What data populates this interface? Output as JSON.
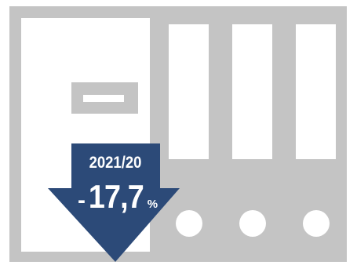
{
  "badge": {
    "period": "2021/20",
    "sign": "-",
    "value": "17,7",
    "unit": "%"
  },
  "colors": {
    "frame": "#c4c4c4",
    "panel": "#ffffff",
    "arrow": "#2c4a78",
    "text": "#ffffff"
  },
  "icons": {
    "device": "server-cabinet-icon",
    "trend": "down-arrow-icon"
  }
}
